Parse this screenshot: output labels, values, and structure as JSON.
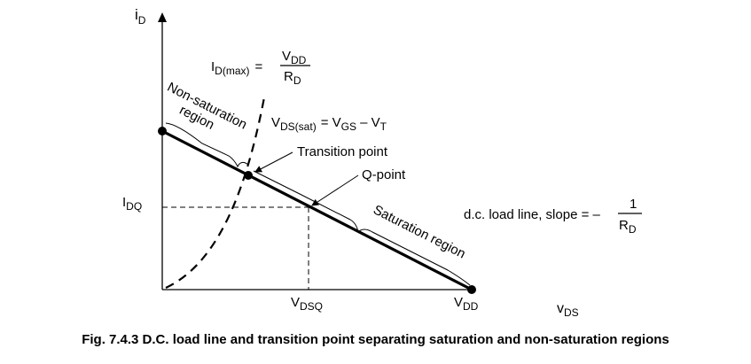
{
  "axes": {
    "y_label": {
      "main": "i",
      "sub": "D"
    },
    "x_label": {
      "main": "v",
      "sub": "DS"
    }
  },
  "ticks": {
    "idq": {
      "main": "I",
      "sub": "DQ"
    },
    "vdsq": {
      "main": "V",
      "sub": "DSQ"
    },
    "vdd": {
      "main": "V",
      "sub": "DD"
    }
  },
  "formulas": {
    "id_max": {
      "lhs_main": "I",
      "lhs_sub": "D(max)",
      "eq": "=",
      "num_main": "V",
      "num_sub": "DD",
      "den_main": "R",
      "den_sub": "D"
    },
    "vds_sat": {
      "lhs_main": "V",
      "lhs_sub": "DS(sat)",
      "eq": "= V",
      "s1": "GS",
      "mid": " – V",
      "s2": "T"
    },
    "slope": {
      "text": "d.c. load line, slope = –",
      "num": "1",
      "den_main": "R",
      "den_sub": "D"
    }
  },
  "labels": {
    "transition_point": "Transition point",
    "q_point": "Q-point",
    "non_saturation_line1": "Non-saturation",
    "non_saturation_line2": "region",
    "saturation_region": "Saturation region"
  },
  "caption": "Fig. 7.4.3 D.C. load line and transition point separating saturation and non-saturation regions"
}
